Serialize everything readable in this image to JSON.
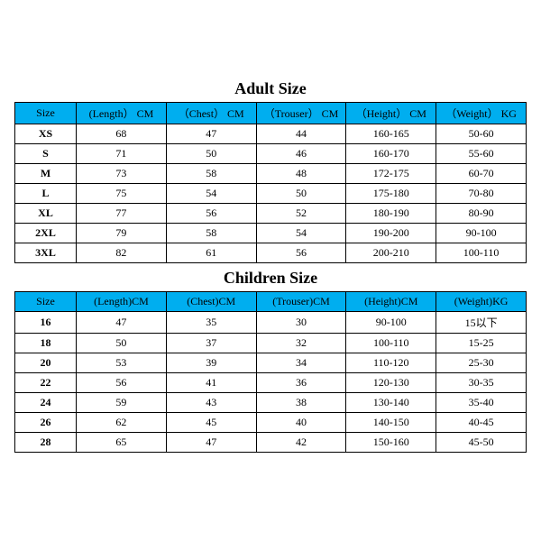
{
  "style": {
    "header_bg": "#00aeef",
    "border_color": "#000000",
    "title_fontsize": 18,
    "cell_fontsize": 12,
    "header_fontsize": 12,
    "font_family": "Times New Roman, serif"
  },
  "adult": {
    "title": "Adult Size",
    "columns": [
      "Size",
      "(Length） CM",
      "（Chest） CM",
      "（Trouser） CM",
      "（Height） CM",
      "（Weight） KG"
    ],
    "col_widths": [
      "12%",
      "17.6%",
      "17.6%",
      "17.6%",
      "17.6%",
      "17.6%"
    ],
    "rows": [
      [
        "XS",
        "68",
        "47",
        "44",
        "160-165",
        "50-60"
      ],
      [
        "S",
        "71",
        "50",
        "46",
        "160-170",
        "55-60"
      ],
      [
        "M",
        "73",
        "58",
        "48",
        "172-175",
        "60-70"
      ],
      [
        "L",
        "75",
        "54",
        "50",
        "175-180",
        "70-80"
      ],
      [
        "XL",
        "77",
        "56",
        "52",
        "180-190",
        "80-90"
      ],
      [
        "2XL",
        "79",
        "58",
        "54",
        "190-200",
        "90-100"
      ],
      [
        "3XL",
        "82",
        "61",
        "56",
        "200-210",
        "100-110"
      ]
    ]
  },
  "children": {
    "title": "Children Size",
    "columns": [
      "Size",
      "(Length)CM",
      "(Chest)CM",
      "(Trouser)CM",
      "(Height)CM",
      "(Weight)KG"
    ],
    "col_widths": [
      "12%",
      "17.6%",
      "17.6%",
      "17.6%",
      "17.6%",
      "17.6%"
    ],
    "rows": [
      [
        "16",
        "47",
        "35",
        "30",
        "90-100",
        "15以下"
      ],
      [
        "18",
        "50",
        "37",
        "32",
        "100-110",
        "15-25"
      ],
      [
        "20",
        "53",
        "39",
        "34",
        "110-120",
        "25-30"
      ],
      [
        "22",
        "56",
        "41",
        "36",
        "120-130",
        "30-35"
      ],
      [
        "24",
        "59",
        "43",
        "38",
        "130-140",
        "35-40"
      ],
      [
        "26",
        "62",
        "45",
        "40",
        "140-150",
        "40-45"
      ],
      [
        "28",
        "65",
        "47",
        "42",
        "150-160",
        "45-50"
      ]
    ]
  }
}
